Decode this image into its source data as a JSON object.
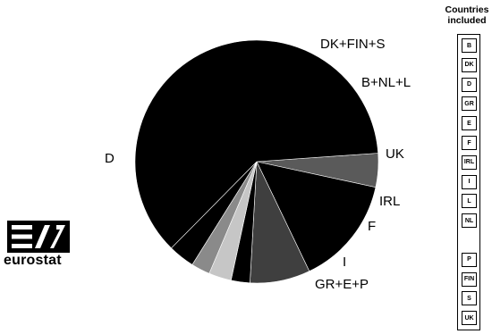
{
  "chart_data": {
    "type": "pie",
    "title": "",
    "start_angle_deg": 4,
    "slices": [
      {
        "label": "DK+FIN+S",
        "value": 4.5,
        "color": "#5a5a5a"
      },
      {
        "label": "B+NL+L",
        "value": 14.5,
        "color": "#000000"
      },
      {
        "label": "UK",
        "value": 8.0,
        "color": "#3f3f3f"
      },
      {
        "label": "IRL",
        "value": 2.5,
        "color": "#000000"
      },
      {
        "label": "F",
        "value": 3.0,
        "color": "#c6c6c6"
      },
      {
        "label": "I",
        "value": 2.5,
        "color": "#8a8a8a"
      },
      {
        "label": "GR+E+P",
        "value": 3.5,
        "color": "#000000"
      },
      {
        "label": "D",
        "value": 61.5,
        "color": "#000000"
      }
    ]
  },
  "logo": {
    "text": "eurostat"
  },
  "legend": {
    "title_line1": "Countries",
    "title_line2": "included",
    "items": [
      "B",
      "DK",
      "D",
      "GR",
      "E",
      "F",
      "IRL",
      "I",
      "L",
      "NL",
      "",
      "P",
      "FIN",
      "S",
      "UK"
    ]
  }
}
